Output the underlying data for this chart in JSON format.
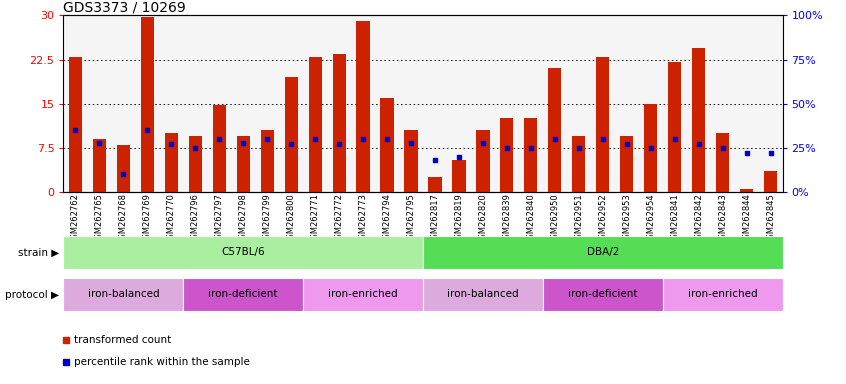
{
  "title": "GDS3373 / 10269",
  "samples": [
    "GSM262762",
    "GSM262765",
    "GSM262768",
    "GSM262769",
    "GSM262770",
    "GSM262796",
    "GSM262797",
    "GSM262798",
    "GSM262799",
    "GSM262800",
    "GSM262771",
    "GSM262772",
    "GSM262773",
    "GSM262794",
    "GSM262795",
    "GSM262817",
    "GSM262819",
    "GSM262820",
    "GSM262839",
    "GSM262840",
    "GSM262950",
    "GSM262951",
    "GSM262952",
    "GSM262953",
    "GSM262954",
    "GSM262841",
    "GSM262842",
    "GSM262843",
    "GSM262844",
    "GSM262845"
  ],
  "red_values": [
    23.0,
    9.0,
    8.0,
    29.8,
    10.0,
    9.5,
    14.8,
    9.5,
    10.5,
    19.5,
    23.0,
    23.5,
    29.0,
    16.0,
    10.5,
    2.5,
    5.5,
    10.5,
    12.5,
    12.5,
    21.0,
    9.5,
    23.0,
    9.5,
    15.0,
    22.0,
    24.5,
    10.0,
    0.5,
    3.5
  ],
  "blue_pct": [
    35,
    28,
    10,
    35,
    27,
    25,
    30,
    28,
    30,
    27,
    30,
    27,
    30,
    30,
    28,
    18,
    20,
    28,
    25,
    25,
    30,
    25,
    30,
    27,
    25,
    30,
    27,
    25,
    22,
    22
  ],
  "strain_groups": [
    {
      "label": "C57BL/6",
      "start": 0,
      "end": 15,
      "color": "#AAEEA0"
    },
    {
      "label": "DBA/2",
      "start": 15,
      "end": 30,
      "color": "#55DD55"
    }
  ],
  "protocol_groups": [
    {
      "label": "iron-balanced",
      "start": 0,
      "end": 5,
      "color": "#DDAADD"
    },
    {
      "label": "iron-deficient",
      "start": 5,
      "end": 10,
      "color": "#CC55CC"
    },
    {
      "label": "iron-enriched",
      "start": 10,
      "end": 15,
      "color": "#EE99EE"
    },
    {
      "label": "iron-balanced",
      "start": 15,
      "end": 20,
      "color": "#DDAADD"
    },
    {
      "label": "iron-deficient",
      "start": 20,
      "end": 25,
      "color": "#CC55CC"
    },
    {
      "label": "iron-enriched",
      "start": 25,
      "end": 30,
      "color": "#EE99EE"
    }
  ],
  "left_ylim": [
    0,
    30
  ],
  "right_ylim": [
    0,
    100
  ],
  "left_yticks": [
    0,
    7.5,
    15,
    22.5,
    30
  ],
  "right_yticks": [
    0,
    25,
    50,
    75,
    100
  ],
  "right_yticklabels": [
    "0%",
    "25%",
    "50%",
    "75%",
    "100%"
  ],
  "gridlines": [
    7.5,
    15.0,
    22.5
  ],
  "bar_color": "#CC2200",
  "dot_color": "#0000CC",
  "bar_width": 0.55,
  "title_fontsize": 10,
  "tick_fontsize": 6.0,
  "label_fontsize": 7.5,
  "ytick_fontsize": 8.0
}
